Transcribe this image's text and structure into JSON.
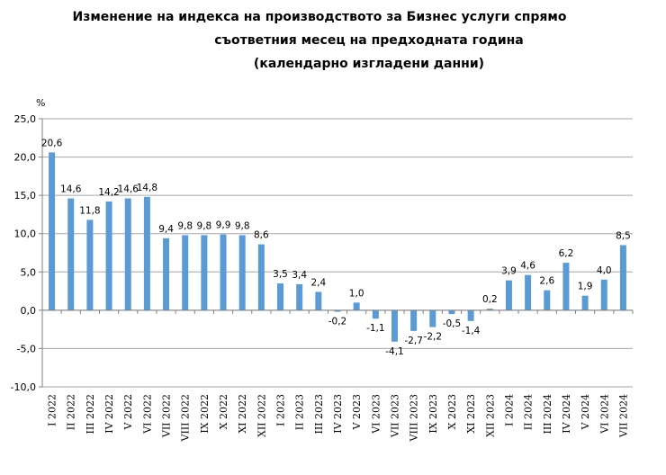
{
  "chart_data": {
    "type": "bar",
    "title_lines": [
      "Изменение на индекса на производството за Бизнес услуги спрямо",
      "съответния месец на предходната година",
      "(календарно изгладени данни)"
    ],
    "ylabel": "%",
    "ylim": [
      -10,
      25
    ],
    "yticks": [
      "25,0",
      "20,0",
      "15,0",
      "10,0",
      "5,0",
      "0,0",
      "-5,0",
      "-10,0"
    ],
    "grid": true,
    "bar_color": "#5b9bd5",
    "categories": [
      "I 2022",
      "II 2022",
      "III 2022",
      "IV 2022",
      "V 2022",
      "VI 2022",
      "VII 2022",
      "VIII 2022",
      "IX 2022",
      "X 2022",
      "XI 2022",
      "XII 2022",
      "I 2023",
      "II 2023",
      "III 2023",
      "IV 2023",
      "V 2023",
      "VI 2023",
      "VII 2023",
      "VIII 2023",
      "IX 2023",
      "X 2023",
      "XI 2023",
      "XII 2023",
      "I 2024",
      "II 2024",
      "III 2024",
      "IV 2024",
      "V 2024",
      "VI 2024",
      "VII 2024"
    ],
    "values": [
      20.6,
      14.6,
      11.8,
      14.2,
      14.6,
      14.8,
      9.4,
      9.8,
      9.8,
      9.9,
      9.8,
      8.6,
      3.5,
      3.4,
      2.4,
      -0.2,
      1.0,
      -1.1,
      -4.1,
      -2.7,
      -2.2,
      -0.5,
      -1.4,
      0.2,
      3.9,
      4.6,
      2.6,
      6.2,
      1.9,
      4.0,
      8.5
    ],
    "labels": [
      "20,6",
      "14,6",
      "11,8",
      "14,2",
      "14,6",
      "14,8",
      "9,4",
      "9,8",
      "9,8",
      "9,9",
      "9,8",
      "8,6",
      "3,5",
      "3,4",
      "2,4",
      "-0,2",
      "1,0",
      "-1,1",
      "-4,1",
      "-2,7",
      "-2,2",
      "-0,5",
      "-1,4",
      "0,2",
      "3,9",
      "4,6",
      "2,6",
      "6,2",
      "1,9",
      "4,0",
      "8,5"
    ]
  }
}
